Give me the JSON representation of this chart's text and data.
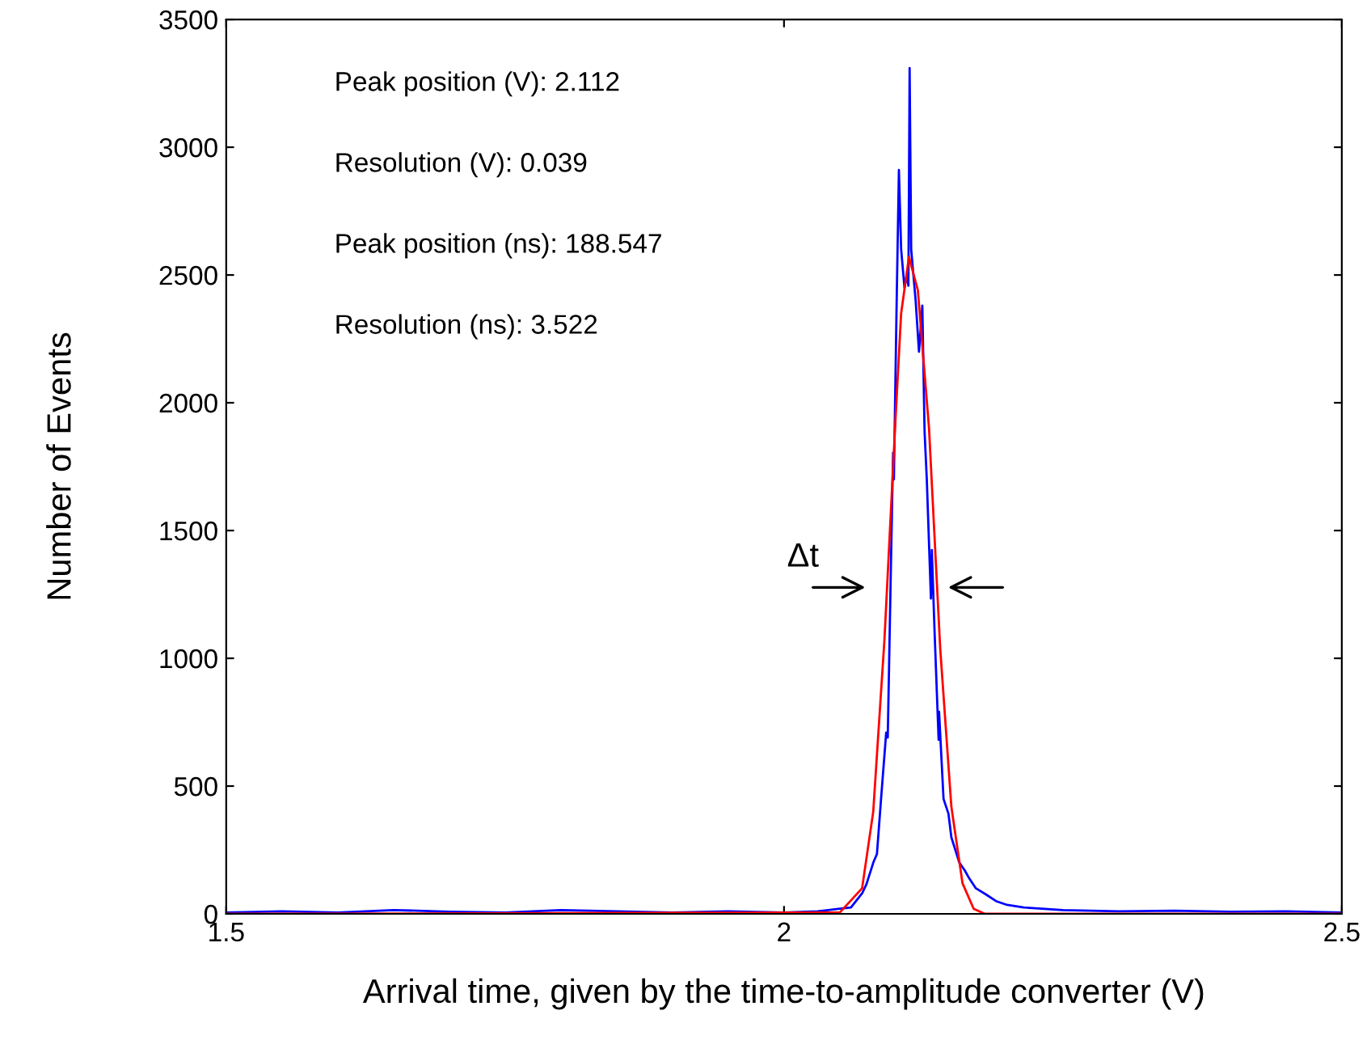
{
  "chart_data": {
    "type": "line",
    "xlabel": "Arrival time, given by the time-to-amplitude converter (V)",
    "ylabel": "Number of Events",
    "xlim": [
      1.5,
      2.5
    ],
    "ylim": [
      0,
      3500
    ],
    "xticks": [
      1.5,
      2,
      2.5
    ],
    "yticks": [
      0,
      500,
      1000,
      1500,
      2000,
      2500,
      3000,
      3500
    ],
    "grid": false,
    "legend": false,
    "line_style": "solid",
    "marker": "none",
    "annotations": [
      "Peak position (V): 2.112",
      "Resolution (V): 0.039",
      "Peak position (ns): 188.547",
      "Resolution (ns): 3.522",
      "Δt"
    ],
    "series": [
      {
        "color": "#0000ff",
        "x": [
          1.5,
          1.55,
          1.6,
          1.65,
          1.7,
          1.75,
          1.8,
          1.85,
          1.9,
          1.95,
          2.0,
          2.03,
          2.05,
          2.06,
          2.07,
          2.0739,
          2.08,
          2.0833,
          2.087,
          2.0916,
          2.093,
          2.096,
          2.0978,
          2.0985,
          2.101,
          2.103,
          2.105,
          2.108,
          2.11,
          2.1115,
          2.1126,
          2.114,
          2.118,
          2.121,
          2.124,
          2.126,
          2.128,
          2.1317,
          2.1325,
          2.135,
          2.1386,
          2.139,
          2.143,
          2.1474,
          2.15,
          2.157,
          2.162,
          2.166,
          2.172,
          2.181,
          2.19,
          2.2,
          2.215,
          2.25,
          2.3,
          2.35,
          2.4,
          2.45,
          2.5
        ],
        "values": [
          5,
          10,
          5,
          15,
          8,
          5,
          15,
          10,
          5,
          10,
          5,
          10,
          20,
          25,
          80,
          116,
          200,
          234,
          450,
          709,
          690,
          1400,
          1804,
          1700,
          2400,
          2911,
          2600,
          2450,
          2500,
          2458,
          3310,
          2600,
          2400,
          2200,
          2380,
          1888,
          1700,
          1234,
          1424,
          1100,
          681,
          791,
          450,
          392,
          300,
          202,
          170,
          139,
          100,
          76,
          50,
          35,
          25,
          15,
          10,
          12,
          8,
          10,
          5
        ]
      },
      {
        "color": "#ff0000",
        "x": [
          1.5,
          2.05,
          2.07,
          2.08,
          2.09,
          2.1,
          2.105,
          2.112,
          2.12,
          2.13,
          2.14,
          2.15,
          2.16,
          2.17,
          2.18,
          2.5
        ],
        "values": [
          0,
          5,
          100,
          400,
          1070,
          1940,
          2350,
          2570,
          2440,
          1900,
          1040,
          420,
          120,
          20,
          0,
          0
        ]
      }
    ]
  }
}
